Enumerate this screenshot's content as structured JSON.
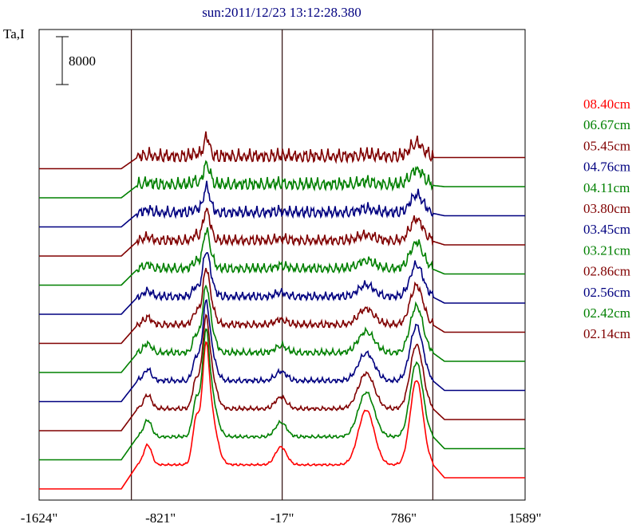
{
  "chart_data": {
    "type": "line",
    "title": "sun:2011/12/23 13:12:28.380",
    "ylabel": "Ta,I",
    "scale_bar_label": "8000",
    "x_ticks": [
      "-1624\"",
      "-821\"",
      "-17\"",
      "786\"",
      "1589\""
    ],
    "xlim": [
      -1624,
      1589
    ],
    "vertical_markers": [
      -1014,
      -17,
      979
    ],
    "series": [
      {
        "name": "08.40cm",
        "color": "#ff0000"
      },
      {
        "name": "06.67cm",
        "color": "#008000"
      },
      {
        "name": "05.45cm",
        "color": "#800000"
      },
      {
        "name": "04.76cm",
        "color": "#000080"
      },
      {
        "name": "04.11cm",
        "color": "#008000"
      },
      {
        "name": "03.80cm",
        "color": "#800000"
      },
      {
        "name": "03.45cm",
        "color": "#000080"
      },
      {
        "name": "03.21cm",
        "color": "#008000"
      },
      {
        "name": "02.86cm",
        "color": "#800000"
      },
      {
        "name": "02.56cm",
        "color": "#000080"
      },
      {
        "name": "02.42cm",
        "color": "#008000"
      },
      {
        "name": "02.14cm",
        "color": "#800000"
      }
    ]
  }
}
